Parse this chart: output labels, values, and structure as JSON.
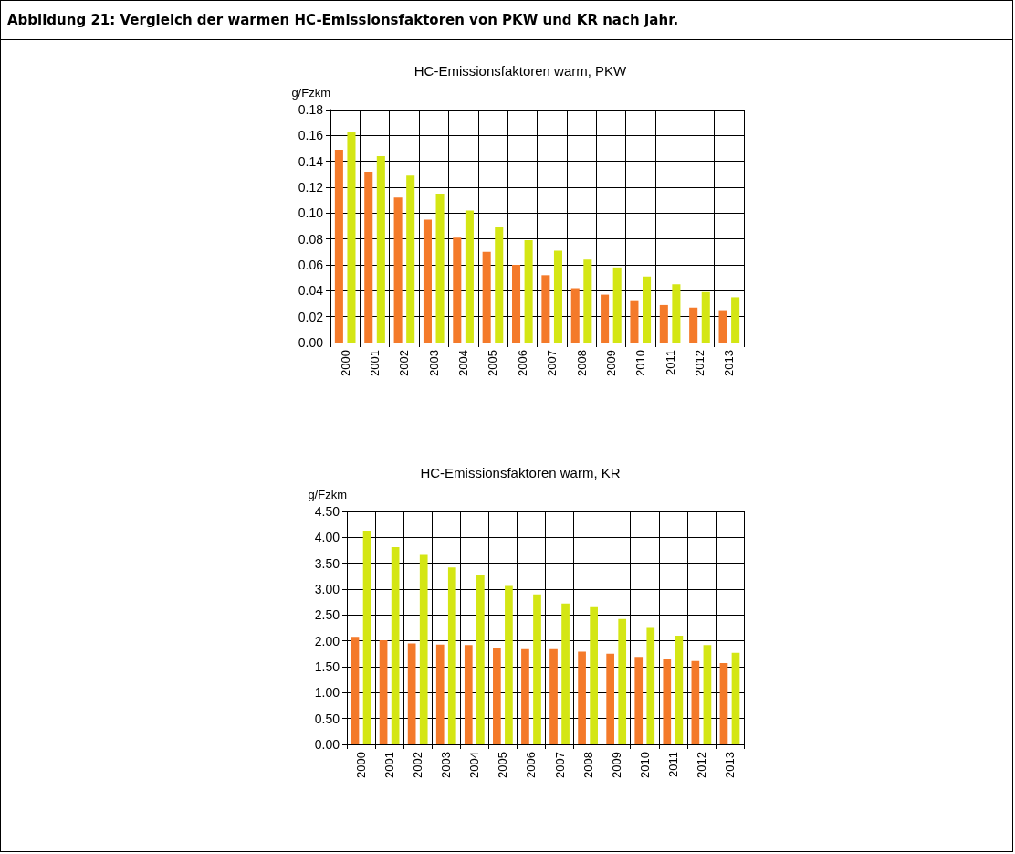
{
  "chart_data": [
    {
      "type": "bar",
      "title": "HC-Emissionsfaktoren warm, PKW",
      "ylabel": "g/Fzkm",
      "annotations": [
        "Abbildung 21: Vergleich der warmen HC-Emissionsfaktoren von PKW und KR nach Jahr."
      ],
      "categories": [
        "2000",
        "2001",
        "2002",
        "2003",
        "2004",
        "2005",
        "2006",
        "2007",
        "2008",
        "2009",
        "2010",
        "2011",
        "2012",
        "2013"
      ],
      "series": [
        {
          "color": "#f47a2a",
          "values": [
            0.149,
            0.132,
            0.112,
            0.095,
            0.081,
            0.07,
            0.06,
            0.052,
            0.042,
            0.037,
            0.032,
            0.029,
            0.027,
            0.025
          ]
        },
        {
          "color": "#d4e614",
          "values": [
            0.163,
            0.144,
            0.129,
            0.115,
            0.102,
            0.089,
            0.079,
            0.071,
            0.064,
            0.058,
            0.051,
            0.045,
            0.039,
            0.035
          ]
        }
      ],
      "ylim": [
        0,
        0.18
      ],
      "yticks": [
        {
          "value": 0,
          "label": "0.00"
        },
        {
          "value": 0.02,
          "label": "0.02"
        },
        {
          "value": 0.04,
          "label": "0.04"
        },
        {
          "value": 0.06,
          "label": "0.06"
        },
        {
          "value": 0.08,
          "label": "0.08"
        },
        {
          "value": 0.1,
          "label": "0.10"
        },
        {
          "value": 0.12,
          "label": "0.12"
        },
        {
          "value": 0.14,
          "label": "0.14"
        },
        {
          "value": 0.16,
          "label": "0.16"
        },
        {
          "value": 0.18,
          "label": "0.18"
        }
      ],
      "grid": true
    },
    {
      "type": "bar",
      "title": "HC-Emissionsfaktoren warm, KR",
      "ylabel": "g/Fzkm",
      "categories": [
        "2000",
        "2001",
        "2002",
        "2003",
        "2004",
        "2005",
        "2006",
        "2007",
        "2008",
        "2009",
        "2010",
        "2011",
        "2012",
        "2013"
      ],
      "series": [
        {
          "color": "#f47a2a",
          "values": [
            2.08,
            2.01,
            1.95,
            1.93,
            1.92,
            1.87,
            1.84,
            1.84,
            1.79,
            1.75,
            1.69,
            1.65,
            1.61,
            1.57
          ]
        },
        {
          "color": "#d4e614",
          "values": [
            4.13,
            3.81,
            3.66,
            3.42,
            3.27,
            3.06,
            2.9,
            2.72,
            2.65,
            2.42,
            2.25,
            2.1,
            1.92,
            1.77
          ]
        }
      ],
      "ylim": [
        0,
        4.5
      ],
      "yticks": [
        {
          "value": 0,
          "label": "0.00"
        },
        {
          "value": 0.5,
          "label": "0.50"
        },
        {
          "value": 1,
          "label": "1.00"
        },
        {
          "value": 1.5,
          "label": "1.50"
        },
        {
          "value": 2,
          "label": "2.00"
        },
        {
          "value": 2.5,
          "label": "2.50"
        },
        {
          "value": 3,
          "label": "3.00"
        },
        {
          "value": 3.5,
          "label": "3.50"
        },
        {
          "value": 4,
          "label": "4.00"
        },
        {
          "value": 4.5,
          "label": "4.50"
        }
      ],
      "grid": true
    }
  ]
}
